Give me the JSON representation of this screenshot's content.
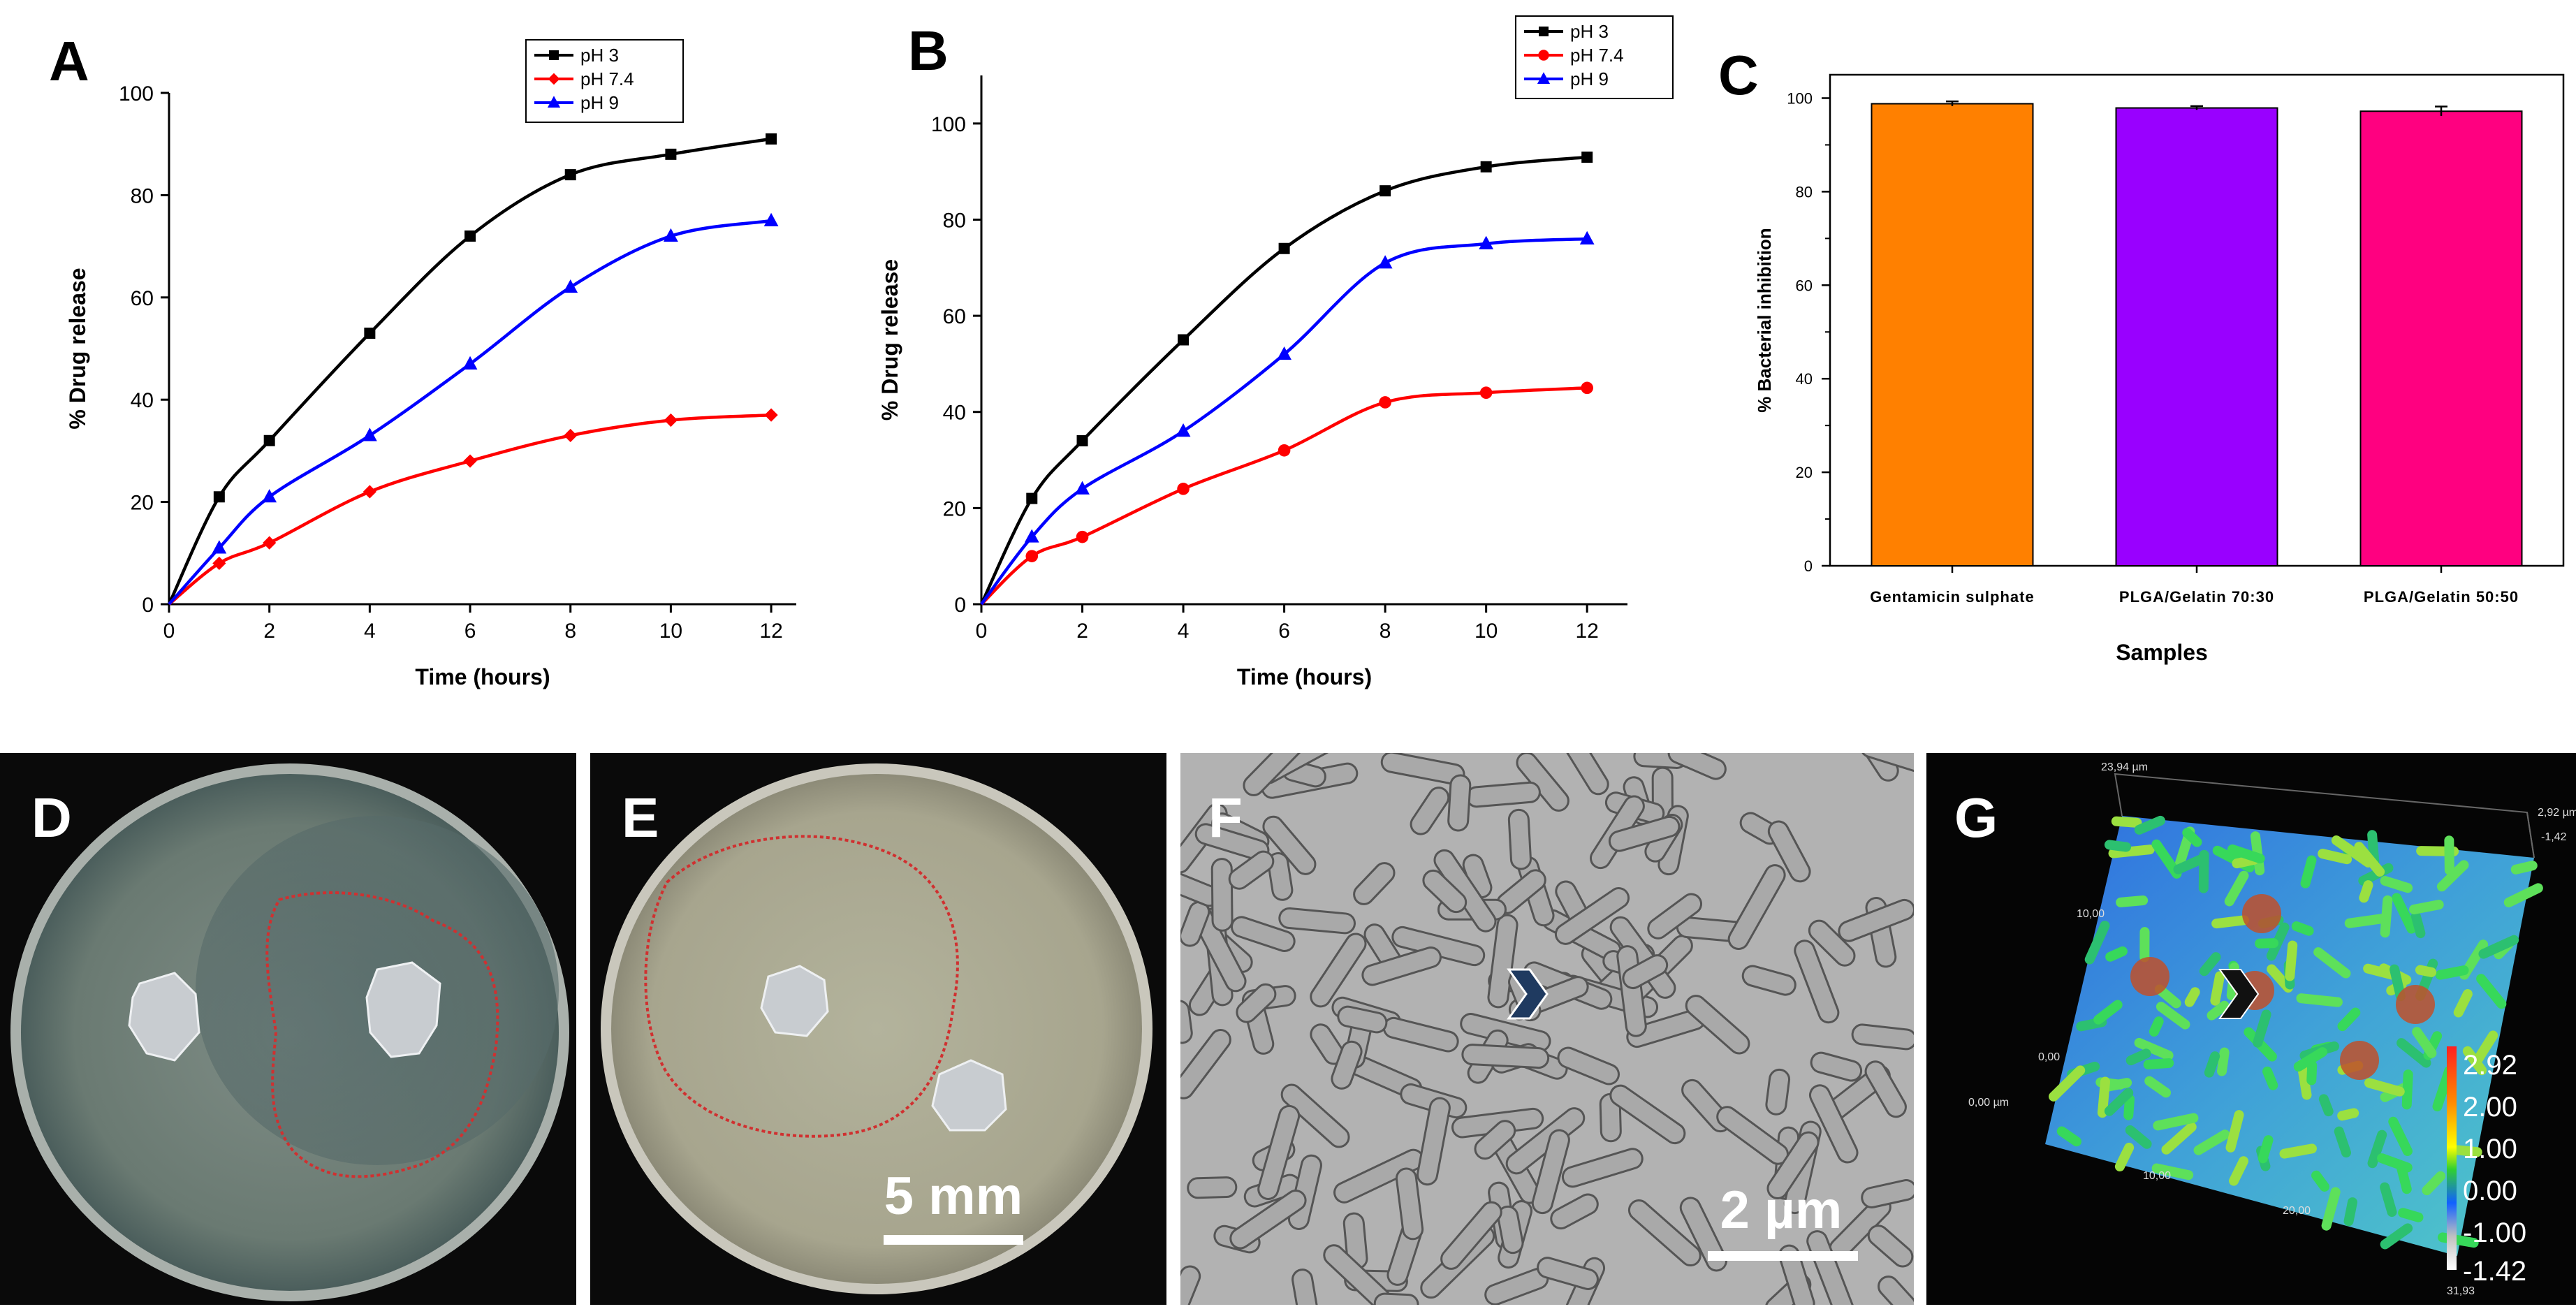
{
  "chart_data": [
    {
      "panel": "A",
      "type": "line",
      "xlabel": "Time (hours)",
      "ylabel": "% Drug release",
      "xlim": [
        0,
        12.5
      ],
      "ylim": [
        0,
        100
      ],
      "xticks": [
        0,
        2,
        4,
        6,
        8,
        10,
        12
      ],
      "yticks": [
        0,
        20,
        40,
        60,
        80,
        100
      ],
      "legend": "top-right",
      "x": [
        0,
        1,
        2,
        4,
        6,
        8,
        10,
        12
      ],
      "series": [
        {
          "name": "pH 3",
          "color": "#000000",
          "marker": "square",
          "values": [
            0,
            21,
            32,
            53,
            72,
            84,
            88,
            91
          ]
        },
        {
          "name": "pH 7.4",
          "color": "#ff0000",
          "marker": "diamond",
          "values": [
            0,
            8,
            12,
            22,
            28,
            33,
            36,
            37
          ]
        },
        {
          "name": "pH 9",
          "color": "#0000ff",
          "marker": "triangle",
          "values": [
            0,
            11,
            21,
            33,
            47,
            62,
            72,
            75
          ]
        }
      ]
    },
    {
      "panel": "B",
      "type": "line",
      "xlabel": "Time (hours)",
      "ylabel": "% Drug release",
      "xlim": [
        0,
        12.8
      ],
      "ylim": [
        0,
        110
      ],
      "xticks": [
        0,
        2,
        4,
        6,
        8,
        10,
        12
      ],
      "yticks": [
        0,
        20,
        40,
        60,
        80,
        100
      ],
      "legend": "top-right",
      "x": [
        0,
        1,
        2,
        4,
        6,
        8,
        10,
        12
      ],
      "series": [
        {
          "name": "pH 3",
          "color": "#000000",
          "marker": "square",
          "values": [
            0,
            22,
            34,
            55,
            74,
            86,
            91,
            93
          ]
        },
        {
          "name": "pH 7.4",
          "color": "#ff0000",
          "marker": "circle",
          "values": [
            0,
            10,
            14,
            24,
            32,
            42,
            44,
            45
          ]
        },
        {
          "name": "pH 9",
          "color": "#0000ff",
          "marker": "triangle",
          "values": [
            0,
            14,
            24,
            36,
            52,
            71,
            75,
            76
          ]
        }
      ]
    },
    {
      "panel": "C",
      "type": "bar",
      "xlabel": "Samples",
      "ylabel": "% Bacterial inhibition",
      "ylim": [
        0,
        105
      ],
      "yticks": [
        0,
        20,
        40,
        60,
        80,
        100
      ],
      "categories": [
        "Gentamicin sulphate",
        "PLGA/Gelatin 70:30",
        "PLGA/Gelatin 50:50"
      ],
      "values": [
        98.8,
        97.9,
        97.2
      ],
      "errors": [
        0.5,
        0.4,
        1.0
      ],
      "colors": [
        "#ff8000",
        "#9900ff",
        "#ff0080"
      ]
    }
  ],
  "photos": {
    "D": {
      "letter": "D"
    },
    "E": {
      "letter": "E",
      "scale_bar": "5 mm"
    },
    "F": {
      "letter": "F",
      "scale_bar": "2 µm"
    },
    "G": {
      "letter": "G",
      "colorbar_labels": [
        "2.92",
        "2.00",
        "1.00",
        "0.00",
        "-1.00",
        "-1.42"
      ],
      "axis_labels": [
        "23,94 µm",
        "2,92 µm",
        "-1,42",
        "10,00",
        "0,00",
        "0,00 µm",
        "10,00",
        "20,00",
        "31,93"
      ]
    }
  }
}
